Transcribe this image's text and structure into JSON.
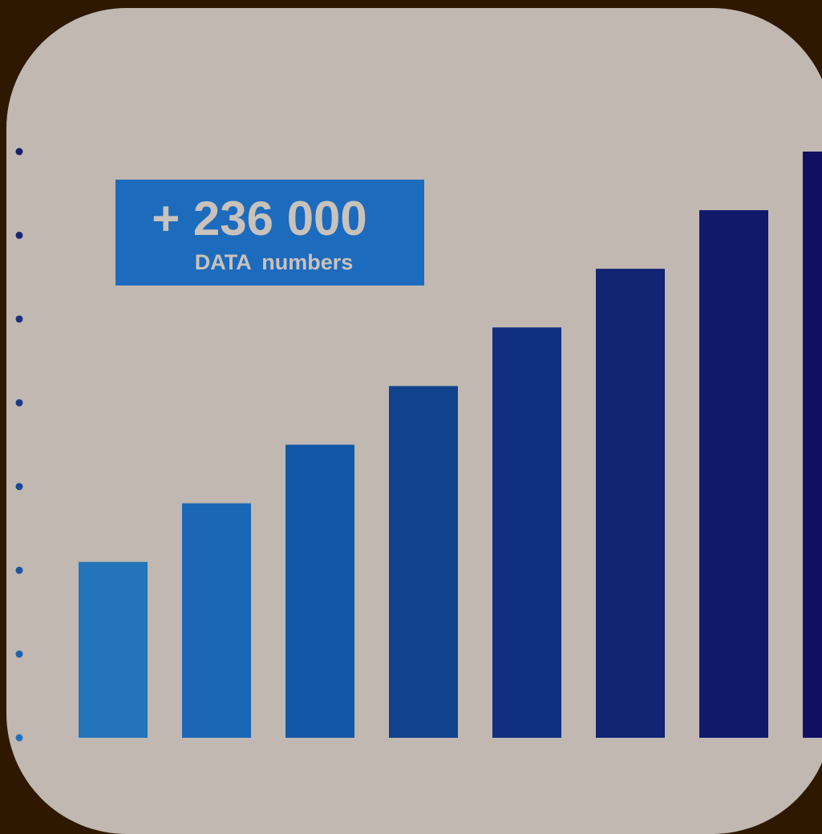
{
  "callout": {
    "value": "+ 236 000",
    "label": "DATA  numbers"
  },
  "colors": {
    "background": "#2e1800",
    "card": "#c0b8b1",
    "callout": "#1d6bbd",
    "callout_text": "#c9c2bb",
    "bars": [
      "#2474b9",
      "#1b67b6",
      "#1457a9",
      "#11428c",
      "#112f7f",
      "#112373",
      "#10196a",
      "#100f62"
    ],
    "dots": [
      "#181e68",
      "#1b2570",
      "#1c3079",
      "#1d3b84",
      "#1d4790",
      "#1e559d",
      "#1f63ab",
      "#2172b8"
    ]
  },
  "chart_data": {
    "type": "bar",
    "title": "",
    "xlabel": "",
    "ylabel": "",
    "categories": [
      "",
      "",
      "",
      "",
      "",
      "",
      "",
      ""
    ],
    "values": [
      2.1,
      2.8,
      3.5,
      4.2,
      4.9,
      5.6,
      6.3,
      7.0
    ],
    "ylim": [
      0,
      7
    ],
    "y_ticks": [
      0,
      1,
      2,
      3,
      4,
      5,
      6,
      7
    ],
    "y_tick_labels_visible": false,
    "grid": false,
    "legend": "none",
    "annotation": "+ 236 000 DATA numbers"
  }
}
